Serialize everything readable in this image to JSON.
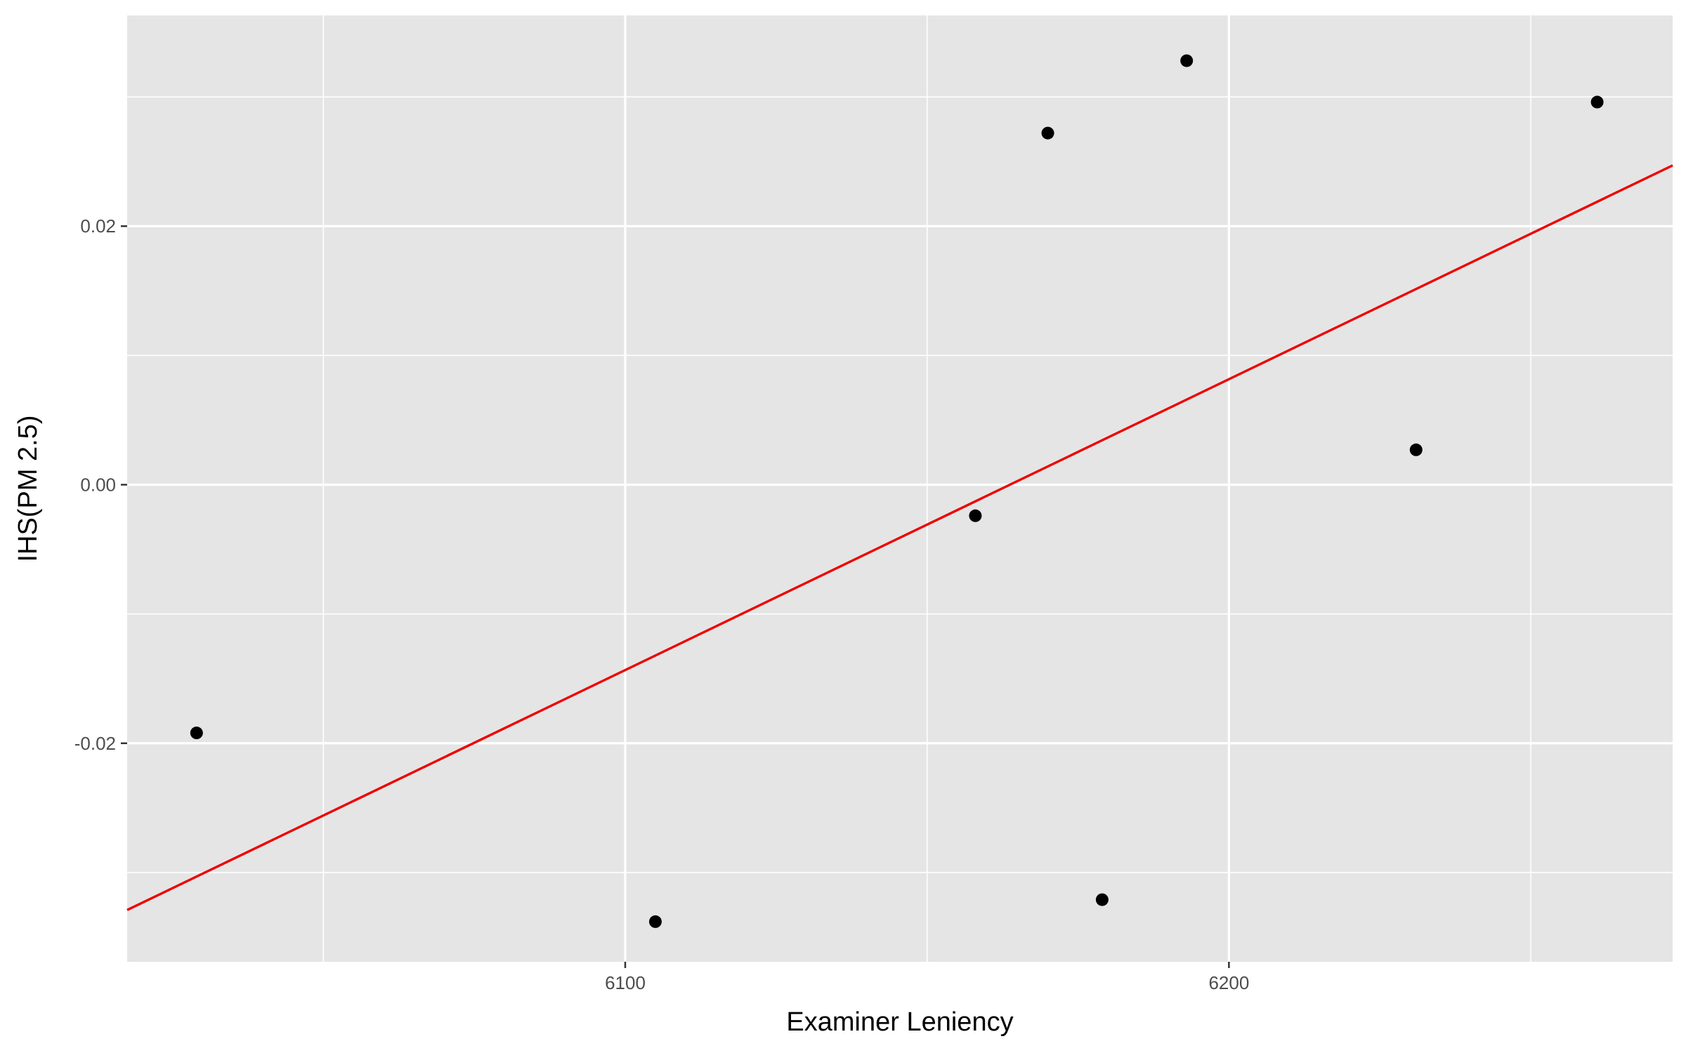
{
  "chart_data": {
    "type": "scatter",
    "xlabel": "Examiner Leniency",
    "ylabel": "IHS(PM 2.5)",
    "xlim": [
      6017.5,
      6273.5
    ],
    "ylim": [
      -0.0369,
      0.0363
    ],
    "x_ticks": [
      6100,
      6200
    ],
    "x_tick_labels": [
      "6100",
      "6200"
    ],
    "x_minor_ticks": [
      6050,
      6150,
      6250
    ],
    "y_ticks": [
      -0.02,
      0.0,
      0.02
    ],
    "y_tick_labels": [
      "-0.02",
      "0.00",
      "0.02"
    ],
    "y_minor_ticks": [
      -0.03,
      -0.01,
      0.01,
      0.03
    ],
    "grid": true,
    "panel_color": "#e5e5e5",
    "grid_color": "#ffffff",
    "points": [
      {
        "x": 6029,
        "y": -0.0192
      },
      {
        "x": 6105,
        "y": -0.0338
      },
      {
        "x": 6158,
        "y": -0.0024
      },
      {
        "x": 6170,
        "y": 0.0272
      },
      {
        "x": 6179,
        "y": -0.0321
      },
      {
        "x": 6193,
        "y": 0.0328
      },
      {
        "x": 6231,
        "y": 0.0027
      },
      {
        "x": 6261,
        "y": 0.0296
      }
    ],
    "point_color": "#000000",
    "fit_line": {
      "x": [
        6017.5,
        6273.5
      ],
      "y": [
        -0.0329,
        0.0247
      ],
      "color": "#ee0000"
    }
  }
}
